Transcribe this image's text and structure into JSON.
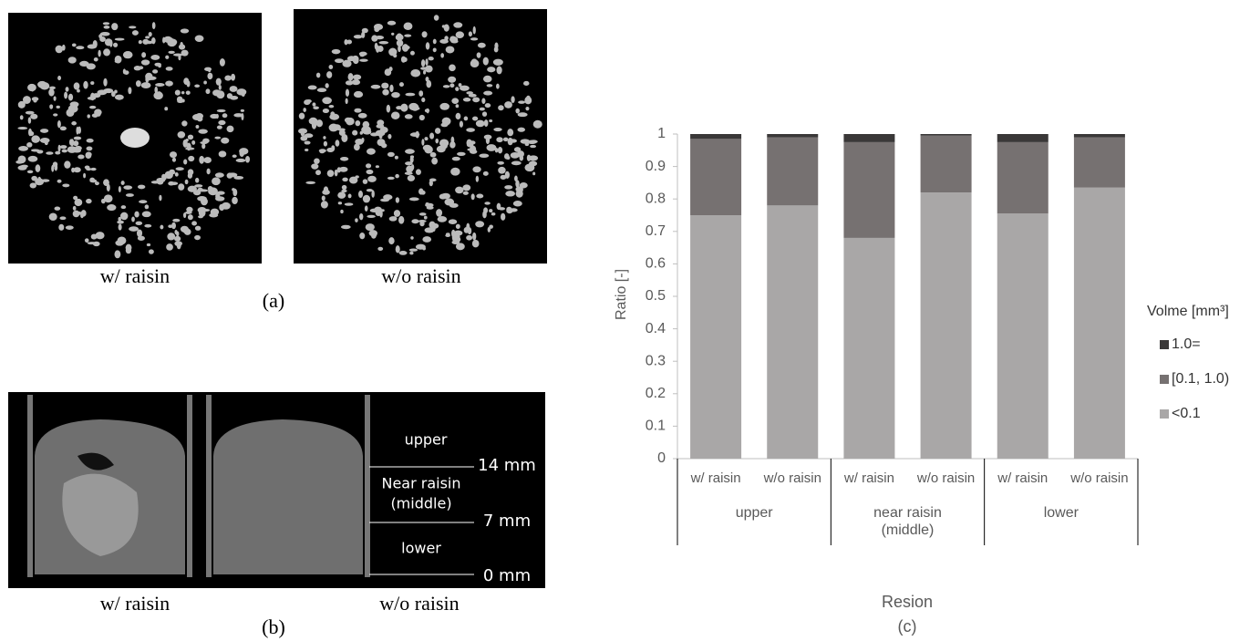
{
  "panels": {
    "a": {
      "labels": [
        "w/ raisin",
        "w/o raisin"
      ],
      "caption": "(a)"
    },
    "b": {
      "labels": [
        "w/ raisin",
        "w/o raisin"
      ],
      "caption": "(b)",
      "regions": [
        "upper",
        "Near raisin",
        "(middle)",
        "lower"
      ],
      "heights": [
        "14 mm",
        "7 mm",
        "0 mm"
      ]
    }
  },
  "chart_data": {
    "type": "stacked_bar",
    "caption": "(c)",
    "x_label": "Resion",
    "y_label": "Ratio [-]",
    "legend_title": "Volme [mm³]",
    "legend_position": "right",
    "categories": [
      "w/ raisin",
      "w/o raisin",
      "w/ raisin",
      "w/o raisin",
      "w/ raisin",
      "w/o raisin"
    ],
    "groups": [
      "upper",
      "near raisin (middle)",
      "lower"
    ],
    "series": [
      {
        "name": "<0.1",
        "color": "#a9a7a7",
        "values": [
          0.75,
          0.78,
          0.68,
          0.82,
          0.755,
          0.835
        ]
      },
      {
        "name": "[0.1, 1.0)",
        "color": "#767171",
        "values": [
          0.235,
          0.21,
          0.295,
          0.175,
          0.22,
          0.155
        ]
      },
      {
        "name": "1.0=",
        "color": "#3a3838",
        "values": [
          0.015,
          0.01,
          0.025,
          0.005,
          0.025,
          0.01
        ]
      }
    ],
    "ylim": [
      0,
      1
    ],
    "yticks": [
      0,
      0.1,
      0.2,
      0.3,
      0.4,
      0.5,
      0.6,
      0.7,
      0.8,
      0.9,
      1
    ],
    "grid": false
  }
}
